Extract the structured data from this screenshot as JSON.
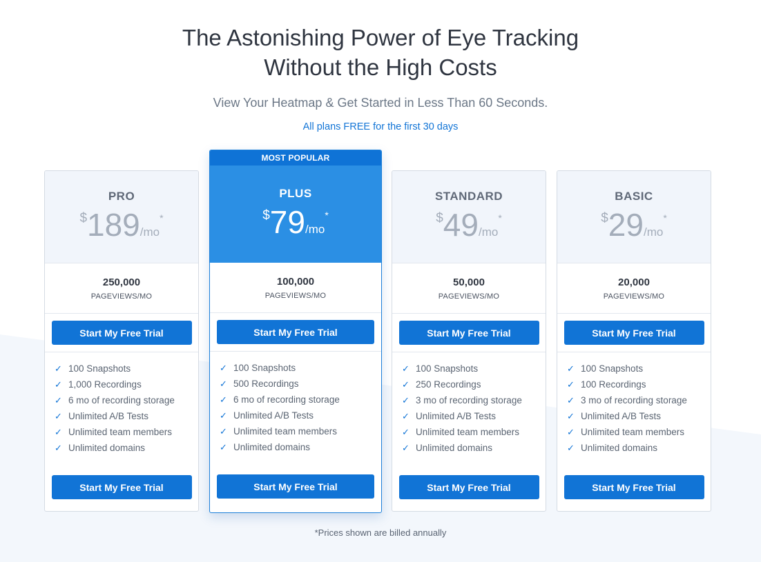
{
  "hero": {
    "headline_line1": "The Astonishing Power of Eye Tracking",
    "headline_line2": "Without the High Costs",
    "subhead": "View Your Heatmap & Get Started in Less Than 60 Seconds.",
    "plans_note": "All plans FREE for the first 30 days"
  },
  "featured_badge": "MOST POPULAR",
  "plans": [
    {
      "name": "PRO",
      "currency": "$",
      "amount": "189",
      "period": "/mo",
      "asterisk": "*",
      "pageviews": "250,000",
      "pageviews_unit": "PAGEVIEWS/MO",
      "cta_top": "Start My Free Trial",
      "cta_bottom": "Start My Free Trial",
      "features": [
        "100 Snapshots",
        "1,000 Recordings",
        "6 mo of recording storage",
        "Unlimited A/B Tests",
        "Unlimited team members",
        "Unlimited domains"
      ]
    },
    {
      "name": "PLUS",
      "currency": "$",
      "amount": "79",
      "period": "/mo",
      "asterisk": "*",
      "pageviews": "100,000",
      "pageviews_unit": "PAGEVIEWS/MO",
      "cta_top": "Start My Free Trial",
      "cta_bottom": "Start My Free Trial",
      "features": [
        "100 Snapshots",
        "500 Recordings",
        "6 mo of recording storage",
        "Unlimited A/B Tests",
        "Unlimited team members",
        "Unlimited domains"
      ]
    },
    {
      "name": "STANDARD",
      "currency": "$",
      "amount": "49",
      "period": "/mo",
      "asterisk": "*",
      "pageviews": "50,000",
      "pageviews_unit": "PAGEVIEWS/MO",
      "cta_top": "Start My Free Trial",
      "cta_bottom": "Start My Free Trial",
      "features": [
        "100 Snapshots",
        "250 Recordings",
        "3 mo of recording storage",
        "Unlimited A/B Tests",
        "Unlimited team members",
        "Unlimited domains"
      ]
    },
    {
      "name": "BASIC",
      "currency": "$",
      "amount": "29",
      "period": "/mo",
      "asterisk": "*",
      "pageviews": "20,000",
      "pageviews_unit": "PAGEVIEWS/MO",
      "cta_top": "Start My Free Trial",
      "cta_bottom": "Start My Free Trial",
      "features": [
        "100 Snapshots",
        "100 Recordings",
        "3 mo of recording storage",
        "Unlimited A/B Tests",
        "Unlimited team members",
        "Unlimited domains"
      ]
    }
  ],
  "check_icon_glyph": "✓",
  "footnote": "*Prices shown are billed annually",
  "colors": {
    "accent": "#1174d6",
    "featured_header": "#2b8fe4",
    "card_header": "#f1f5fb",
    "background_shape": "#f3f7fc"
  }
}
